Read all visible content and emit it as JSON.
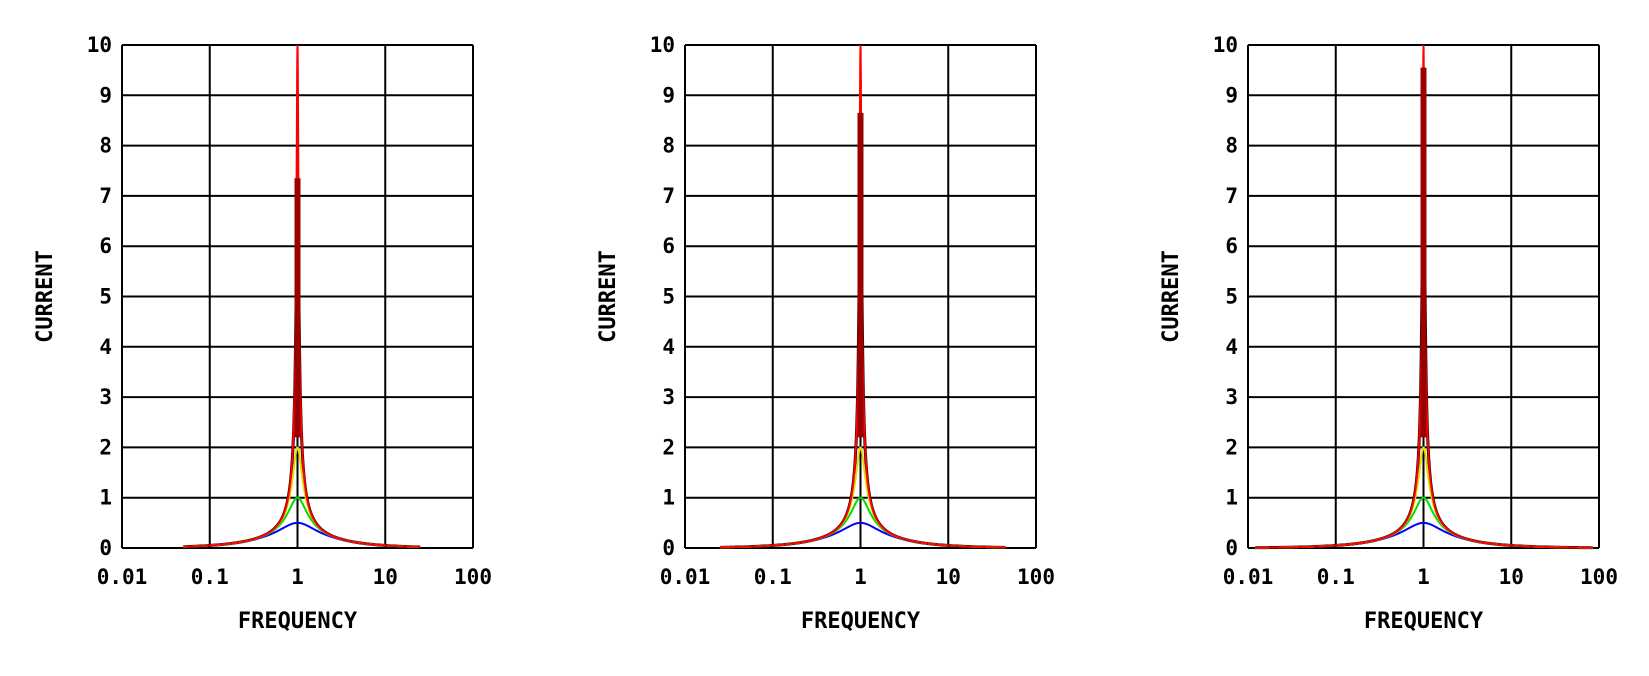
{
  "chart_data": [
    {
      "type": "line",
      "xlabel": "FREQUENCY",
      "ylabel": "CURRENT",
      "xscale": "log",
      "xlim": [
        0.01,
        100
      ],
      "ylim": [
        0,
        10
      ],
      "xticks": [
        "0.01",
        "0.1",
        "1",
        "10",
        "100"
      ],
      "yticks": [
        "0",
        "1",
        "2",
        "3",
        "4",
        "5",
        "6",
        "7",
        "8",
        "9",
        "10"
      ],
      "grid": true,
      "resonance_frequency": 1,
      "peak_black": 7.35,
      "x_range": [
        0.05,
        25
      ],
      "series": [
        {
          "color": "#0000ff",
          "peak": 0.5
        },
        {
          "color": "#00dd00",
          "peak": 1
        },
        {
          "color": "#dddd00",
          "peak": 2
        },
        {
          "color": "#ff0000",
          "peak": 10
        }
      ]
    },
    {
      "type": "line",
      "xlabel": "FREQUENCY",
      "ylabel": "CURRENT",
      "xscale": "log",
      "xlim": [
        0.01,
        100
      ],
      "ylim": [
        0,
        10
      ],
      "xticks": [
        "0.01",
        "0.1",
        "1",
        "10",
        "100"
      ],
      "yticks": [
        "0",
        "1",
        "2",
        "3",
        "4",
        "5",
        "6",
        "7",
        "8",
        "9",
        "10"
      ],
      "grid": true,
      "resonance_frequency": 1,
      "peak_black": 8.65,
      "x_range": [
        0.025,
        45
      ],
      "series": [
        {
          "color": "#0000ff",
          "peak": 0.5
        },
        {
          "color": "#00dd00",
          "peak": 1
        },
        {
          "color": "#dddd00",
          "peak": 2
        },
        {
          "color": "#ff0000",
          "peak": 10
        }
      ]
    },
    {
      "type": "line",
      "xlabel": "FREQUENCY",
      "ylabel": "CURRENT",
      "xscale": "log",
      "xlim": [
        0.01,
        100
      ],
      "ylim": [
        0,
        10
      ],
      "xticks": [
        "0.01",
        "0.1",
        "1",
        "10",
        "100"
      ],
      "yticks": [
        "0",
        "1",
        "2",
        "3",
        "4",
        "5",
        "6",
        "7",
        "8",
        "9",
        "10"
      ],
      "grid": true,
      "resonance_frequency": 1,
      "peak_black": 9.55,
      "x_range": [
        0.012,
        85
      ],
      "series": [
        {
          "color": "#0000ff",
          "peak": 0.5
        },
        {
          "color": "#00dd00",
          "peak": 1
        },
        {
          "color": "#dddd00",
          "peak": 2
        },
        {
          "color": "#ff0000",
          "peak": 10
        }
      ]
    }
  ]
}
